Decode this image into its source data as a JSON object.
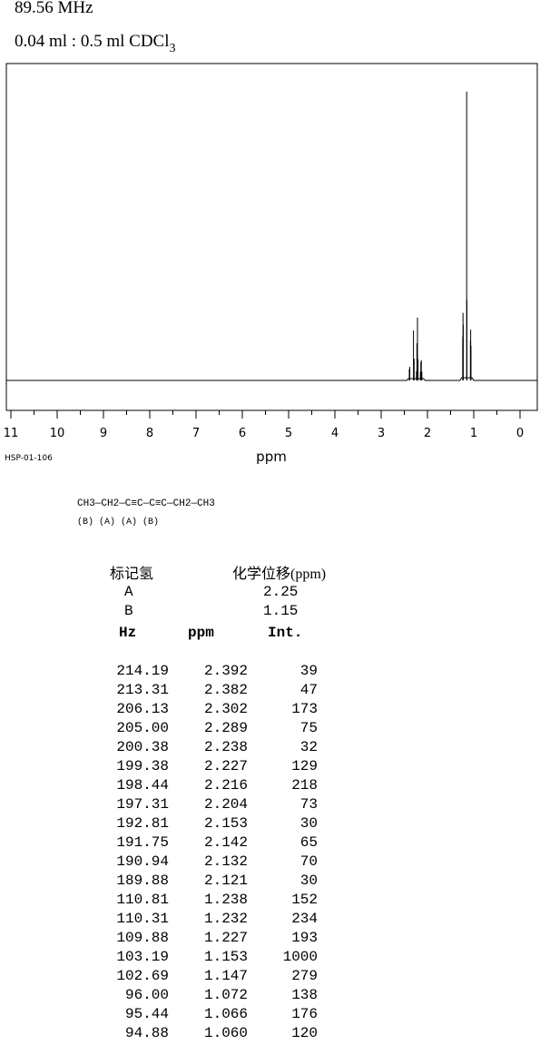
{
  "header": {
    "frequency": "89.56 MHz",
    "solvent_prefix": "0.04 ml : 0.5 ml CDCl",
    "solvent_subscript": "3"
  },
  "chart_data": {
    "type": "line",
    "xlabel": "ppm",
    "xlim": [
      11,
      0
    ],
    "x_reversed": true,
    "ticks": [
      "11",
      "10",
      "9",
      "8",
      "7",
      "6",
      "5",
      "4",
      "3",
      "2",
      "1",
      "0"
    ],
    "y_range": [
      0,
      1000
    ],
    "grid": false,
    "peaks": [
      {
        "ppm": 2.392,
        "int": 39
      },
      {
        "ppm": 2.382,
        "int": 47
      },
      {
        "ppm": 2.302,
        "int": 173
      },
      {
        "ppm": 2.289,
        "int": 75
      },
      {
        "ppm": 2.238,
        "int": 32
      },
      {
        "ppm": 2.227,
        "int": 129
      },
      {
        "ppm": 2.216,
        "int": 218
      },
      {
        "ppm": 2.204,
        "int": 73
      },
      {
        "ppm": 2.153,
        "int": 30
      },
      {
        "ppm": 2.142,
        "int": 65
      },
      {
        "ppm": 2.132,
        "int": 70
      },
      {
        "ppm": 2.121,
        "int": 30
      },
      {
        "ppm": 1.238,
        "int": 152
      },
      {
        "ppm": 1.232,
        "int": 234
      },
      {
        "ppm": 1.227,
        "int": 193
      },
      {
        "ppm": 1.153,
        "int": 1000
      },
      {
        "ppm": 1.147,
        "int": 279
      },
      {
        "ppm": 1.072,
        "int": 138
      },
      {
        "ppm": 1.066,
        "int": 176
      },
      {
        "ppm": 1.06,
        "int": 120
      }
    ]
  },
  "spectrum_code": "HSP-01-106",
  "structure": {
    "formula": "CH3—CH2—C≡C—C≡C—CH2—CH3",
    "labels": "(B)  (A)                           (A)  (B)"
  },
  "assignments": {
    "header_label": "标记氢",
    "header_shift": "化学位移(ppm)",
    "rows": [
      {
        "label": "A",
        "shift": "2.25"
      },
      {
        "label": "B",
        "shift": "1.15"
      }
    ]
  },
  "peak_table": {
    "headers": {
      "hz": "Hz",
      "ppm": "ppm",
      "int": "Int."
    },
    "rows": [
      {
        "hz": "214.19",
        "ppm": "2.392",
        "int": "39"
      },
      {
        "hz": "213.31",
        "ppm": "2.382",
        "int": "47"
      },
      {
        "hz": "206.13",
        "ppm": "2.302",
        "int": "173"
      },
      {
        "hz": "205.00",
        "ppm": "2.289",
        "int": "75"
      },
      {
        "hz": "200.38",
        "ppm": "2.238",
        "int": "32"
      },
      {
        "hz": "199.38",
        "ppm": "2.227",
        "int": "129"
      },
      {
        "hz": "198.44",
        "ppm": "2.216",
        "int": "218"
      },
      {
        "hz": "197.31",
        "ppm": "2.204",
        "int": "73"
      },
      {
        "hz": "192.81",
        "ppm": "2.153",
        "int": "30"
      },
      {
        "hz": "191.75",
        "ppm": "2.142",
        "int": "65"
      },
      {
        "hz": "190.94",
        "ppm": "2.132",
        "int": "70"
      },
      {
        "hz": "189.88",
        "ppm": "2.121",
        "int": "30"
      },
      {
        "hz": "110.81",
        "ppm": "1.238",
        "int": "152"
      },
      {
        "hz": "110.31",
        "ppm": "1.232",
        "int": "234"
      },
      {
        "hz": "109.88",
        "ppm": "1.227",
        "int": "193"
      },
      {
        "hz": "103.19",
        "ppm": "1.153",
        "int": "1000"
      },
      {
        "hz": "102.69",
        "ppm": "1.147",
        "int": "279"
      },
      {
        "hz": "96.00",
        "ppm": "1.072",
        "int": "138"
      },
      {
        "hz": "95.44",
        "ppm": "1.066",
        "int": "176"
      },
      {
        "hz": "94.88",
        "ppm": "1.060",
        "int": "120"
      }
    ]
  }
}
